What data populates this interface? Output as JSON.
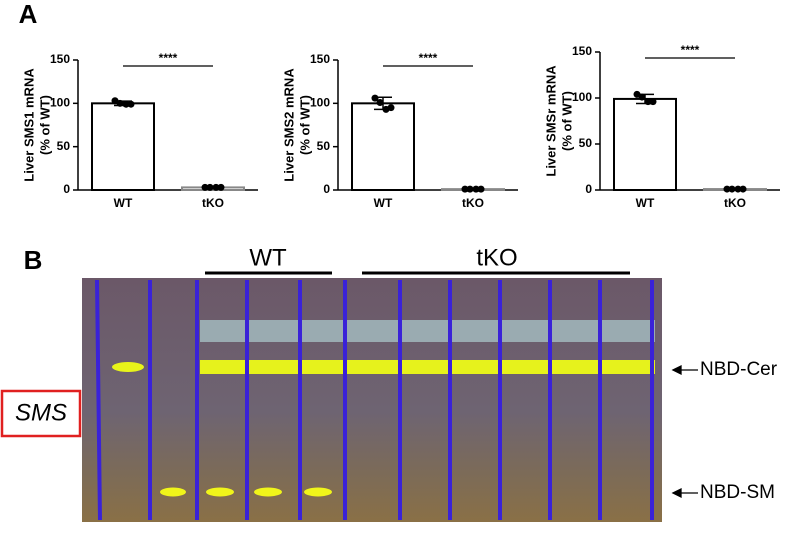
{
  "panels": {
    "a": "A",
    "b": "B"
  },
  "chart_data": [
    {
      "type": "bar",
      "ylabel": [
        "Liver SMS1 mRNA",
        "(% of WT)"
      ],
      "categories": [
        "WT",
        "tKO"
      ],
      "values": [
        100,
        3
      ],
      "errors": [
        2.5,
        0.6
      ],
      "points": [
        [
          103,
          100,
          99,
          99
        ],
        [
          3,
          3,
          3,
          3
        ]
      ],
      "annotation": "****",
      "ylim": [
        0,
        150
      ],
      "yticks": [
        0,
        50,
        100,
        150
      ],
      "color": "#ffffff"
    },
    {
      "type": "bar",
      "ylabel": [
        "Liver SMS2 mRNA",
        "(% of WT)"
      ],
      "categories": [
        "WT",
        "tKO"
      ],
      "values": [
        100,
        1
      ],
      "errors": [
        7,
        0.3
      ],
      "points": [
        [
          106,
          101,
          93,
          95
        ],
        [
          1,
          1,
          1,
          1
        ]
      ],
      "annotation": "****",
      "ylim": [
        0,
        150
      ],
      "yticks": [
        0,
        50,
        100,
        150
      ],
      "color": "#ffffff"
    },
    {
      "type": "bar",
      "ylabel": [
        "Liver SMSr mRNA",
        "(% of WT)"
      ],
      "categories": [
        "WT",
        "tKO"
      ],
      "values": [
        99,
        1
      ],
      "errors": [
        5,
        0.3
      ],
      "points": [
        [
          104,
          101,
          96,
          96
        ],
        [
          1,
          1,
          1,
          1
        ]
      ],
      "annotation": "****",
      "ylim": [
        0,
        150
      ],
      "yticks": [
        0,
        50,
        100,
        150
      ],
      "color": "#ffffff"
    }
  ],
  "tlc": {
    "groups": [
      "WT",
      "tKO"
    ],
    "bands": [
      "NBD-Cer",
      "NBD-SM"
    ],
    "box": "SMS"
  }
}
